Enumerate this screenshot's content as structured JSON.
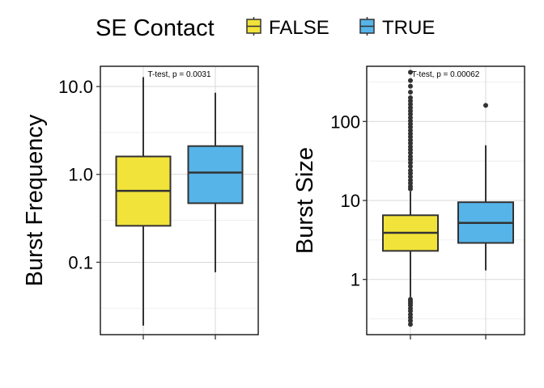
{
  "legend": {
    "title": "SE Contact",
    "entries": [
      {
        "label": "FALSE",
        "color": "#F2E33B"
      },
      {
        "label": "TRUE",
        "color": "#56B4E9"
      }
    ],
    "position": "top"
  },
  "chart_data": [
    {
      "type": "box",
      "ylabel": "Burst Frequency",
      "scale": "log10",
      "ylim": [
        0.015,
        17
      ],
      "yticks": [
        0.1,
        1.0,
        10.0
      ],
      "ytick_labels": [
        "0.1",
        "1.0",
        "10.0"
      ],
      "minor_gridlines": [
        0.03,
        0.3,
        3
      ],
      "annotation": "T-test, p = 0.0031",
      "groups": [
        {
          "name": "FALSE",
          "color": "#F2E33B",
          "whisker_low": 0.019,
          "q1": 0.26,
          "median": 0.65,
          "q3": 1.6,
          "whisker_high": 12.8,
          "outliers": []
        },
        {
          "name": "TRUE",
          "color": "#56B4E9",
          "whisker_low": 0.077,
          "q1": 0.47,
          "median": 1.05,
          "q3": 2.1,
          "whisker_high": 8.5,
          "outliers": []
        }
      ]
    },
    {
      "type": "box",
      "ylabel": "Burst Size",
      "scale": "log10",
      "ylim": [
        0.2,
        500
      ],
      "yticks": [
        1,
        10,
        100
      ],
      "ytick_labels": [
        "1",
        "10",
        "100"
      ],
      "minor_gridlines": [
        0.316,
        3.16,
        31.6,
        316
      ],
      "annotation": "T-test, p = 0.00062",
      "groups": [
        {
          "name": "FALSE",
          "color": "#F2E33B",
          "whisker_low": 0.6,
          "q1": 2.3,
          "median": 3.9,
          "q3": 6.5,
          "whisker_high": 13,
          "outliers": [
            0.27,
            0.3,
            0.33,
            0.36,
            0.4,
            0.43,
            0.47,
            0.5,
            0.53,
            0.56,
            14,
            15,
            16.5,
            18,
            20,
            22,
            24,
            27,
            30,
            33,
            36,
            40,
            44,
            48,
            53,
            58,
            64,
            70,
            77,
            85,
            93,
            102,
            112,
            124,
            136,
            150,
            165,
            182,
            200,
            235,
            280,
            330,
            420
          ]
        },
        {
          "name": "TRUE",
          "color": "#56B4E9",
          "whisker_low": 1.3,
          "q1": 2.9,
          "median": 5.2,
          "q3": 9.5,
          "whisker_high": 50,
          "outliers": [
            160
          ]
        }
      ]
    }
  ]
}
